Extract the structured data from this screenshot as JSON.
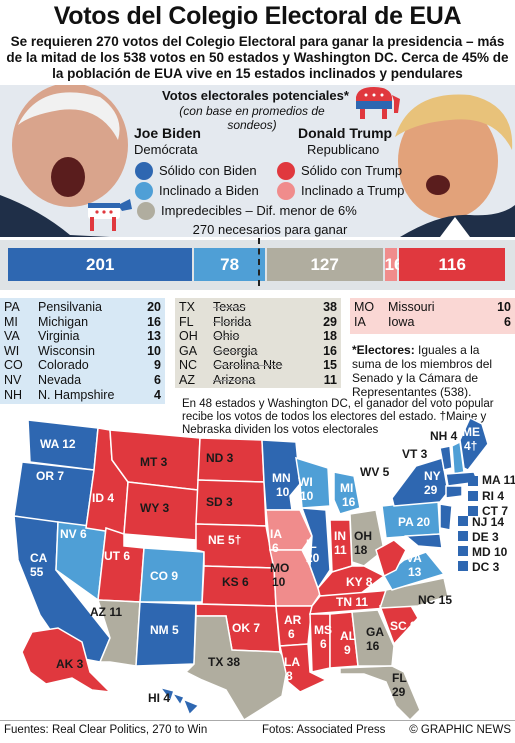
{
  "title": "Votos del Colegio Electoral de EUA",
  "subtitle": "Se requieren 270 votos del Colegio Electoral para ganar la presidencia – más de la mitad de los 538 votos en 50 estados y Washington DC. Cerca de 45% de la población de EUA vive en 15 estados inclinados y pendulares",
  "legend": {
    "title": "Votos electorales potenciales*",
    "note": "(con base en promedios de sondeos)",
    "items": [
      {
        "label": "Sólido con Biden",
        "color": "#2e67b1"
      },
      {
        "label": "Inclinado a Biden",
        "color": "#4f9fd6"
      },
      {
        "label": "Sólido con Trump",
        "color": "#e0383e"
      },
      {
        "label": "Inclinado a Trump",
        "color": "#f08c8c"
      },
      {
        "label": "Impredecibles – Dif. menor de 6%",
        "color": "#b0ad9f"
      }
    ],
    "needed": "270 necesarios para ganar"
  },
  "candidates": {
    "biden": {
      "name": "Joe Biden",
      "party": "Demócrata"
    },
    "trump": {
      "name": "Donald Trump",
      "party": "Republicano"
    }
  },
  "chart_data": {
    "type": "bar",
    "categories": [
      "Sólido con Biden",
      "Inclinado a Biden",
      "Impredecibles – Dif. menor de 6%",
      "Inclinado a Trump",
      "Sólido con Trump"
    ],
    "values": [
      201,
      78,
      127,
      16,
      116
    ],
    "total": 538,
    "threshold": 270
  },
  "lean_biden_states": [
    {
      "abbr": "PA",
      "name": "Pensilvania",
      "votes": "20"
    },
    {
      "abbr": "MI",
      "name": "Michigan",
      "votes": "16"
    },
    {
      "abbr": "VA",
      "name": "Virginia",
      "votes": "13"
    },
    {
      "abbr": "WI",
      "name": "Wisconsin",
      "votes": "10"
    },
    {
      "abbr": "CO",
      "name": "Colorado",
      "votes": "9"
    },
    {
      "abbr": "NV",
      "name": "Nevada",
      "votes": "6"
    },
    {
      "abbr": "NH",
      "name": "N. Hampshire",
      "votes": "4"
    }
  ],
  "tossup_states": [
    {
      "abbr": "TX",
      "name": "Texas",
      "votes": "38"
    },
    {
      "abbr": "FL",
      "name": "Florida",
      "votes": "29"
    },
    {
      "abbr": "OH",
      "name": "Ohio",
      "votes": "18"
    },
    {
      "abbr": "GA",
      "name": "Georgia",
      "votes": "16"
    },
    {
      "abbr": "NC",
      "name": "Carolina Nte",
      "votes": "15"
    },
    {
      "abbr": "AZ",
      "name": "Arizona",
      "votes": "11"
    }
  ],
  "lean_trump_states": [
    {
      "abbr": "MO",
      "name": "Missouri",
      "votes": "10"
    },
    {
      "abbr": "IA",
      "name": "Iowa",
      "votes": "6"
    }
  ],
  "electors_note_label": "*Electores:",
  "electors_note": " Iguales a la suma de los miembros del Senado y la Cámara de Representantes (538).",
  "rule_note": "En 48 estados y Washington DC, el ganador del voto popular recibe los votos de todos los electores del estado. †Maine y Nebraska dividen los votos electorales",
  "map_labels": [
    {
      "t": "WA 12",
      "c": "w"
    },
    {
      "t": "OR 7",
      "c": "w"
    },
    {
      "t": "CA",
      "c": "w"
    },
    {
      "t": "55",
      "c": "w"
    },
    {
      "t": "NV 6",
      "c": "w"
    },
    {
      "t": "ID 4",
      "c": "w"
    },
    {
      "t": "MT 3",
      "c": "d"
    },
    {
      "t": "WY 3",
      "c": "d"
    },
    {
      "t": "UT 6",
      "c": "w"
    },
    {
      "t": "CO 9",
      "c": "w"
    },
    {
      "t": "AZ 11",
      "c": "d"
    },
    {
      "t": "NM 5",
      "c": "w"
    },
    {
      "t": "ND 3",
      "c": "d"
    },
    {
      "t": "SD 3",
      "c": "d"
    },
    {
      "t": "NE 5†",
      "c": "w"
    },
    {
      "t": "KS 6",
      "c": "d"
    },
    {
      "t": "OK 7",
      "c": "w"
    },
    {
      "t": "TX 38",
      "c": "d"
    },
    {
      "t": "MN",
      "c": "w"
    },
    {
      "t": "10",
      "c": "w"
    },
    {
      "t": "IA",
      "c": "w"
    },
    {
      "t": "6",
      "c": "w"
    },
    {
      "t": "MO",
      "c": "d"
    },
    {
      "t": "10",
      "c": "d"
    },
    {
      "t": "AR",
      "c": "w"
    },
    {
      "t": "6",
      "c": "w"
    },
    {
      "t": "LA",
      "c": "w"
    },
    {
      "t": "8",
      "c": "w"
    },
    {
      "t": "WI",
      "c": "w"
    },
    {
      "t": "10",
      "c": "w"
    },
    {
      "t": "IL",
      "c": "w"
    },
    {
      "t": "20",
      "c": "w"
    },
    {
      "t": "MI",
      "c": "w"
    },
    {
      "t": "16",
      "c": "w"
    },
    {
      "t": "IN",
      "c": "w"
    },
    {
      "t": "11",
      "c": "w"
    },
    {
      "t": "OH",
      "c": "d"
    },
    {
      "t": "18",
      "c": "d"
    },
    {
      "t": "KY 8",
      "c": "w"
    },
    {
      "t": "TN 11",
      "c": "w"
    },
    {
      "t": "MS",
      "c": "w"
    },
    {
      "t": "6",
      "c": "w"
    },
    {
      "t": "AL",
      "c": "w"
    },
    {
      "t": "9",
      "c": "w"
    },
    {
      "t": "GA",
      "c": "d"
    },
    {
      "t": "16",
      "c": "d"
    },
    {
      "t": "FL",
      "c": "d"
    },
    {
      "t": "29",
      "c": "d"
    },
    {
      "t": "SC 9",
      "c": "w"
    },
    {
      "t": "NC 15",
      "c": "d"
    },
    {
      "t": "VA",
      "c": "w"
    },
    {
      "t": "13",
      "c": "w"
    },
    {
      "t": "WV 5",
      "c": "d"
    },
    {
      "t": "PA 20",
      "c": "w"
    },
    {
      "t": "NY",
      "c": "w"
    },
    {
      "t": "29",
      "c": "w"
    },
    {
      "t": "VT 3",
      "c": "d"
    },
    {
      "t": "NH 4",
      "c": "d"
    },
    {
      "t": "ME",
      "c": "w"
    },
    {
      "t": "4†",
      "c": "w"
    },
    {
      "t": "MA 11",
      "c": "d"
    },
    {
      "t": "RI 4",
      "c": "d"
    },
    {
      "t": "CT 7",
      "c": "d"
    },
    {
      "t": "NJ 14",
      "c": "d"
    },
    {
      "t": "DE 3",
      "c": "d"
    },
    {
      "t": "MD 10",
      "c": "d"
    },
    {
      "t": "DC 3",
      "c": "d"
    },
    {
      "t": "AK 3",
      "c": "d"
    },
    {
      "t": "HI 4",
      "c": "d"
    }
  ],
  "footer": {
    "sources": "Fuentes: Real Clear Politics, 270 to Win",
    "photos": "Fotos: Associated Press",
    "brand": "© GRAPHIC NEWS"
  }
}
